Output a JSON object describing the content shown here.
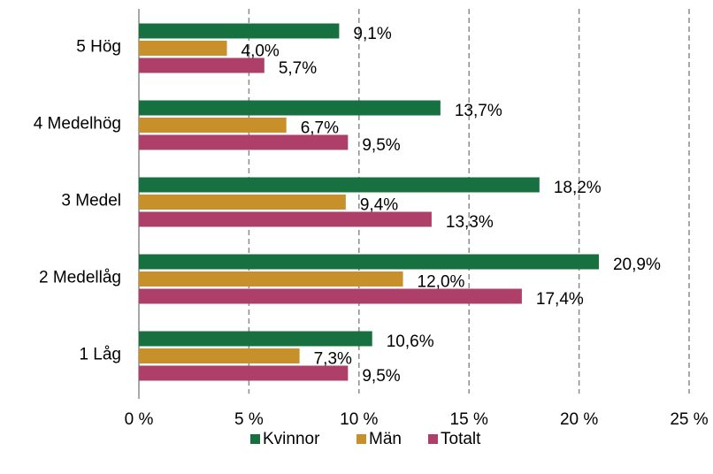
{
  "chart_data": {
    "type": "bar",
    "orientation": "horizontal",
    "categories": [
      "5 Hög",
      "4 Medelhög",
      "3 Medel",
      "2 Medellåg",
      "1 Låg"
    ],
    "series": [
      {
        "name": "Kvinnor",
        "color": "#17703f",
        "values": [
          9.1,
          13.7,
          18.2,
          20.9,
          10.6
        ],
        "value_labels": [
          "9,1%",
          "13,7%",
          "18,2%",
          "20,9%",
          "10,6%"
        ]
      },
      {
        "name": "Män",
        "color": "#c8902a",
        "values": [
          4.0,
          6.7,
          9.4,
          12.0,
          7.3
        ],
        "value_labels": [
          "4,0%",
          "6,7%",
          "9,4%",
          "12,0%",
          "7,3%"
        ]
      },
      {
        "name": "Totalt",
        "color": "#ae3f68",
        "values": [
          5.7,
          9.5,
          13.3,
          17.4,
          9.5
        ],
        "value_labels": [
          "5,7%",
          "9,5%",
          "13,3%",
          "17,4%",
          "9,5%"
        ]
      }
    ],
    "xlim": [
      0,
      25
    ],
    "xticks": [
      {
        "value": 0,
        "label": "0 %"
      },
      {
        "value": 5,
        "label": "5 %"
      },
      {
        "value": 10,
        "label": "10 %"
      },
      {
        "value": 15,
        "label": "15 %"
      },
      {
        "value": 20,
        "label": "20 %"
      },
      {
        "value": 25,
        "label": "25 %"
      }
    ],
    "grid": true,
    "legend": "bottom"
  }
}
